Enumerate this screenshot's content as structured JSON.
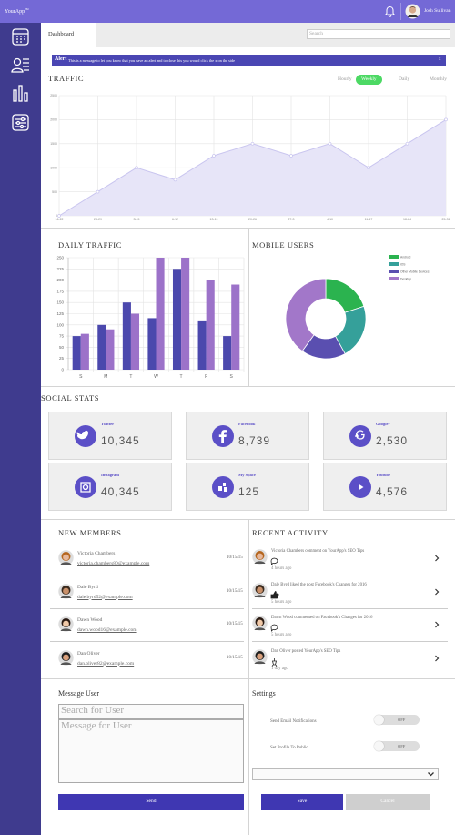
{
  "header": {
    "logo": "YourApp",
    "logo_mark": "TM",
    "user": "Josh Sullivan"
  },
  "tabs": {
    "active": "Dashboard",
    "search_placeholder": "Search"
  },
  "alert": {
    "label": "Alert",
    "message": "This is a message to let you know that you have an alert and to close this you would click the x on the side",
    "close": "x"
  },
  "traffic_ranges": {
    "options": [
      "Hourly",
      "Weekly",
      "Daily",
      "Monthly"
    ],
    "active": "Weekly"
  },
  "chart_data": [
    {
      "type": "line",
      "title": "TRAFFIC",
      "categories": [
        "16-22",
        "23-29",
        "30-5",
        "6-12",
        "13-19",
        "20-26",
        "27-3",
        "4-10",
        "11-17",
        "18-24",
        "25-31"
      ],
      "values": [
        0,
        500,
        1000,
        750,
        1250,
        1500,
        1250,
        1500,
        1000,
        1500,
        2000
      ],
      "color": "#c9c5ef",
      "fill": "#e7e5f8",
      "ylim": [
        0,
        2500
      ],
      "yticks": [
        0,
        500,
        1000,
        1500,
        2000,
        2500
      ],
      "grid": true
    },
    {
      "type": "bar",
      "title": "DAILY TRAFFIC",
      "categories": [
        "S",
        "M",
        "T",
        "W",
        "T",
        "F",
        "S"
      ],
      "series": [
        {
          "color": "#4b48ad",
          "values": [
            75,
            100,
            150,
            115,
            225,
            110,
            75
          ]
        },
        {
          "color": "#9c72c9",
          "values": [
            80,
            90,
            125,
            250,
            250,
            200,
            190
          ]
        }
      ],
      "ylim": [
        0,
        250
      ],
      "yticks": [
        0,
        25,
        50,
        75,
        100,
        125,
        150,
        175,
        200,
        225,
        250
      ],
      "grid": true
    },
    {
      "type": "doughnut",
      "title": "MOBILE USERS",
      "categories": [
        "Android",
        "iOS",
        "Other Mobile Devices",
        "Desktop"
      ],
      "values": [
        20,
        22,
        18,
        40
      ],
      "colors": [
        "#2bb34f",
        "#35a09a",
        "#5a4fb0",
        "#a277c9"
      ],
      "legend": "right"
    }
  ],
  "social": {
    "title": "SOCIAL STATS",
    "items": [
      {
        "name": "Twitter",
        "count": "10,345"
      },
      {
        "name": "Facebook",
        "count": "8,739"
      },
      {
        "name": "Google+",
        "count": "2,530"
      },
      {
        "name": "Instagram",
        "count": "40,345"
      },
      {
        "name": "My Space",
        "count": "125"
      },
      {
        "name": "Youtube",
        "count": "4,576"
      }
    ]
  },
  "new_members": {
    "title": "NEW MEMBERS",
    "rows": [
      {
        "name": "Victoria Chambers",
        "email": "victoria.chambers80@example.com",
        "date": "10/15/15"
      },
      {
        "name": "Dale Byrd",
        "email": "dale.byrd52@example.com",
        "date": "10/15/15"
      },
      {
        "name": "Dawn Wood",
        "email": "dawn.wood16@example.com",
        "date": "10/15/15"
      },
      {
        "name": "Dan Oliver",
        "email": "dan.oliver82@example.com",
        "date": "10/15/15"
      }
    ]
  },
  "recent_activity": {
    "title": "RECENT ACTIVITY",
    "rows": [
      {
        "text": "Victoria Chambers comment on YourApp's SEO Tips",
        "time": "4 hours ago"
      },
      {
        "text": "Dale Byrd liked the post Facebook's Changes for 2016",
        "time": "5 hours ago"
      },
      {
        "text": "Dawn Wood commented on Facebook's Changes for 2016",
        "time": "5 hours ago"
      },
      {
        "text": "Dan Oliver posted YourApp's SEO Tips",
        "time": "1 day ago"
      }
    ]
  },
  "message": {
    "title": "Message User",
    "search_placeholder": "Search for User",
    "message_placeholder": "Message for User",
    "send": "Send"
  },
  "settings": {
    "title": "Settings",
    "rows": [
      {
        "label": "Send Email Notifications",
        "state": "OFF"
      },
      {
        "label": "Set Profile To Public",
        "state": "OFF"
      }
    ],
    "save": "Save",
    "cancel": "Cancel"
  }
}
